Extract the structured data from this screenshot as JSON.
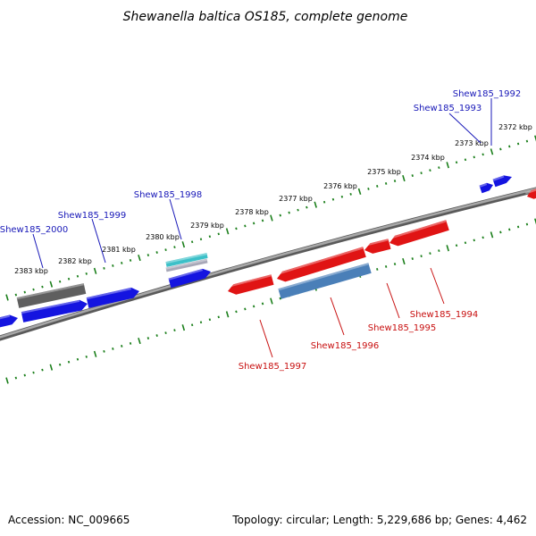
{
  "title": "Shewanella baltica OS185, complete genome",
  "colors": {
    "forward": "#1414e0",
    "reverse": "#e01414",
    "tick": "#1b7f1b",
    "backbone": "#888888",
    "label_forward": "#1818b8",
    "label_reverse": "#c81010",
    "gray_gene": "#5f5f5f",
    "cyan_gene": "#3cc0c8",
    "steel_gene": "#4a7fb8"
  },
  "ticks": [
    "2383 kbp",
    "2382 kbp",
    "2381 kbp",
    "2380 kbp",
    "2379 kbp",
    "2378 kbp",
    "2377 kbp",
    "2376 kbp",
    "2375 kbp",
    "2374 kbp",
    "2373 kbp",
    "2372 kbp"
  ],
  "genes": [
    {
      "name": "Shew185_1992",
      "strand": "forward"
    },
    {
      "name": "Shew185_1993",
      "strand": "forward"
    },
    {
      "name": "Shew185_1998",
      "strand": "forward"
    },
    {
      "name": "Shew185_1999",
      "strand": "forward"
    },
    {
      "name": "Shew185_2000",
      "strand": "forward"
    },
    {
      "name": "Shew185_1994",
      "strand": "reverse"
    },
    {
      "name": "Shew185_1995",
      "strand": "reverse"
    },
    {
      "name": "Shew185_1996",
      "strand": "reverse"
    },
    {
      "name": "Shew185_1997",
      "strand": "reverse"
    }
  ],
  "footer": {
    "accession": "Accession: NC_009665",
    "summary": "Topology: circular; Length: 5,229,686 bp; Genes: 4,462"
  }
}
